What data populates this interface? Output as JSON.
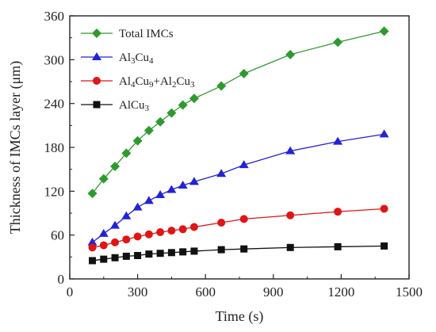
{
  "chart_data": {
    "type": "line",
    "xlabel": "Time (s)",
    "ylabel": "Thickness of IMCs layer (μm)",
    "xlim": [
      0,
      1500
    ],
    "ylim": [
      0,
      360
    ],
    "xticks": [
      0,
      300,
      600,
      900,
      1200,
      1500
    ],
    "yticks": [
      0,
      60,
      120,
      180,
      240,
      300,
      360
    ],
    "legend_position": "top-left",
    "series": [
      {
        "name": "Total IMCs",
        "name_parts": [
          [
            "Total IMCs",
            false
          ]
        ],
        "color": "#2e9a2e",
        "marker": "diamond",
        "x": [
          100,
          150,
          200,
          250,
          300,
          350,
          400,
          450,
          500,
          550,
          670,
          770,
          975,
          1185,
          1390
        ],
        "y": [
          117,
          137,
          154,
          172,
          189,
          203,
          215,
          227,
          238,
          247,
          264,
          281,
          307,
          324,
          339
        ]
      },
      {
        "name": "Al3Cu4",
        "name_parts": [
          [
            "Al",
            false
          ],
          [
            "3",
            true
          ],
          [
            "Cu",
            false
          ],
          [
            "4",
            true
          ]
        ],
        "color": "#2323d6",
        "marker": "triangle",
        "x": [
          100,
          150,
          200,
          250,
          300,
          350,
          400,
          450,
          500,
          550,
          670,
          770,
          975,
          1185,
          1390
        ],
        "y": [
          50,
          62,
          73,
          86,
          98,
          107,
          115,
          122,
          128,
          133,
          144,
          156,
          175,
          188,
          198
        ]
      },
      {
        "name": "Al4Cu9+Al2Cu3",
        "name_parts": [
          [
            "Al",
            false
          ],
          [
            "4",
            true
          ],
          [
            "Cu",
            false
          ],
          [
            "9",
            true
          ],
          [
            "+Al",
            false
          ],
          [
            "2",
            true
          ],
          [
            "Cu",
            false
          ],
          [
            "3",
            true
          ]
        ],
        "color": "#e01515",
        "marker": "circle",
        "x": [
          100,
          150,
          200,
          250,
          300,
          350,
          400,
          450,
          500,
          550,
          670,
          770,
          975,
          1185,
          1390
        ],
        "y": [
          43,
          46,
          50,
          54,
          58,
          61,
          64,
          66,
          68,
          71,
          77,
          82,
          87,
          92,
          96
        ]
      },
      {
        "name": "AlCu3",
        "name_parts": [
          [
            "AlCu",
            false
          ],
          [
            "3",
            true
          ]
        ],
        "color": "#111111",
        "marker": "square",
        "x": [
          100,
          150,
          200,
          250,
          300,
          350,
          400,
          450,
          500,
          550,
          670,
          770,
          975,
          1185,
          1390
        ],
        "y": [
          25,
          27,
          29,
          31,
          32,
          34,
          35,
          36,
          37,
          38,
          40,
          41,
          43,
          44,
          45
        ]
      }
    ]
  }
}
